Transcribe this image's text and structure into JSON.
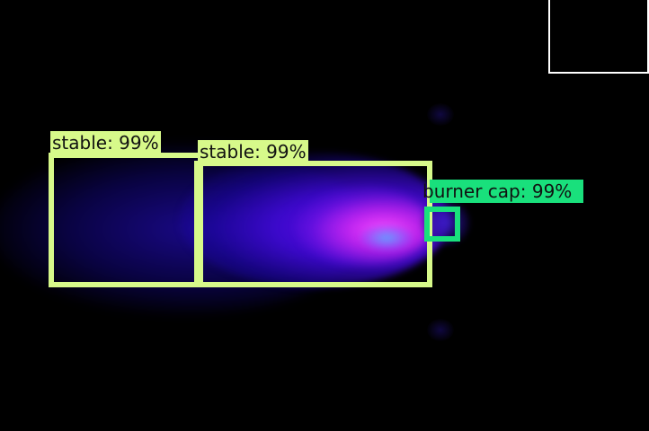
{
  "detections": [
    {
      "label": "stable: 99%",
      "color": "#d7f98a"
    },
    {
      "label": "stable: 99%",
      "color": "#d7f98a"
    },
    {
      "label": "burner cap: 99%",
      "color": "#19e07c"
    }
  ],
  "colors": {
    "background": "#000000",
    "stable_box": "#d7f98a",
    "burner_cap_box": "#19e07c",
    "corner_box": "#ffffff"
  }
}
